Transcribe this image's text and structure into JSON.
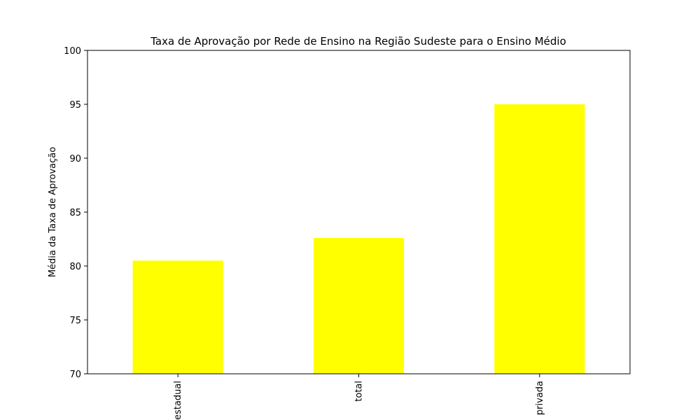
{
  "chart_data": {
    "type": "bar",
    "title": "Taxa de Aprovação por Rede de Ensino na Região Sudeste para o Ensino Médio",
    "xlabel": "",
    "ylabel": "Média da Taxa de Aprovação",
    "categories": [
      "estadual",
      "total",
      "privada"
    ],
    "values": [
      80.5,
      82.6,
      95.0
    ],
    "ylim": [
      70,
      100
    ],
    "yticks": [
      70,
      75,
      80,
      85,
      90,
      95,
      100
    ],
    "bar_color": "#ffff00",
    "grid": false,
    "legend": "none"
  }
}
